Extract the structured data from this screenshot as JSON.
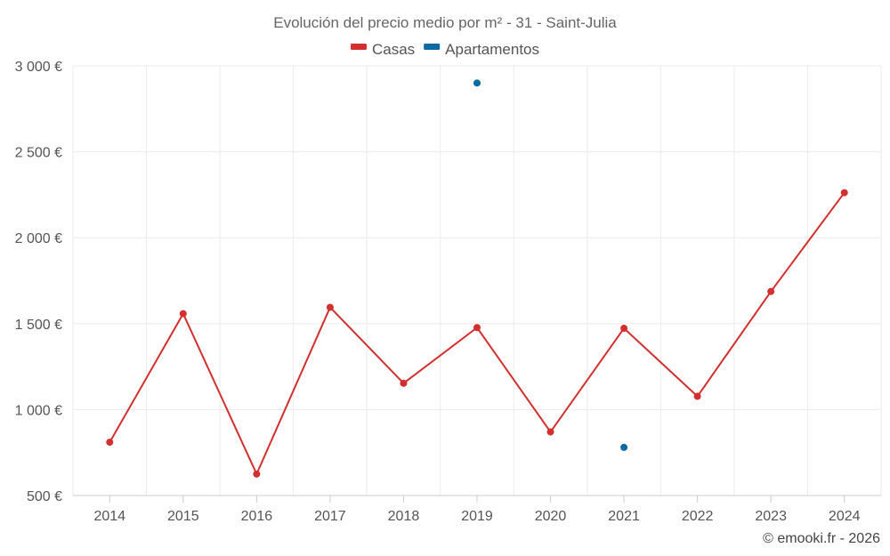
{
  "chart_data": {
    "type": "line",
    "title": "Evolución del precio medio por m² - 31 - Saint-Julia",
    "xlabel": "",
    "ylabel": "",
    "categories": [
      "2014",
      "2015",
      "2016",
      "2017",
      "2018",
      "2019",
      "2020",
      "2021",
      "2022",
      "2023",
      "2024"
    ],
    "ylim": [
      500,
      3000
    ],
    "yticks": [
      {
        "value": 500,
        "label": "500 €"
      },
      {
        "value": 1000,
        "label": "1 000 €"
      },
      {
        "value": 1500,
        "label": "1 500 €"
      },
      {
        "value": 2000,
        "label": "2 000 €"
      },
      {
        "value": 2500,
        "label": "2 500 €"
      },
      {
        "value": 3000,
        "label": "3 000 €"
      }
    ],
    "grid": true,
    "legend_position": "top-center",
    "series": [
      {
        "name": "Casas",
        "color": "#d32f2f",
        "style": "line-with-markers",
        "values": [
          810,
          1558,
          625,
          1595,
          1153,
          1477,
          870,
          1473,
          1077,
          1687,
          2262
        ]
      },
      {
        "name": "Apartamentos",
        "color": "#0a6aa1",
        "style": "markers",
        "values": [
          null,
          null,
          null,
          null,
          null,
          2900,
          null,
          780,
          null,
          null,
          null
        ]
      }
    ],
    "credit": "© emooki.fr - 2026"
  }
}
